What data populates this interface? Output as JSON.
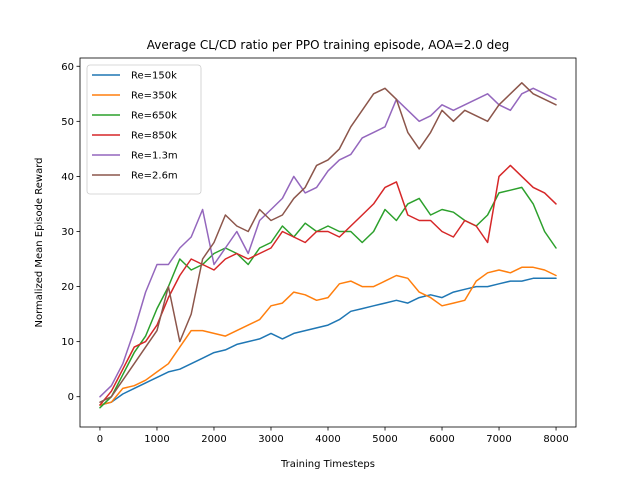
{
  "chart_data": {
    "type": "line",
    "title": "Average CL/CD ratio per PPO training episode, AOA=2.0 deg",
    "xlabel": "Training Timesteps",
    "ylabel": "Normalized Mean Episode Reward",
    "xlim": [
      -350,
      8350
    ],
    "ylim": [
      -5.5,
      61.5
    ],
    "xticks": [
      0,
      1000,
      2000,
      3000,
      4000,
      5000,
      6000,
      7000,
      8000
    ],
    "yticks": [
      0,
      10,
      20,
      30,
      40,
      50,
      60
    ],
    "legend_position": "upper-left",
    "grid": false,
    "series": [
      {
        "name": "Re=150k",
        "color": "#1f77b4",
        "x": [
          0,
          200,
          400,
          600,
          800,
          1000,
          1200,
          1400,
          1600,
          1800,
          2000,
          2200,
          2400,
          2600,
          2800,
          3000,
          3200,
          3400,
          3600,
          3800,
          4000,
          4200,
          4400,
          4600,
          4800,
          5000,
          5200,
          5400,
          5600,
          5800,
          6000,
          6200,
          6400,
          6600,
          6800,
          7000,
          7200,
          7400,
          7600,
          7800,
          8000
        ],
        "y": [
          -1.5,
          -1,
          0.5,
          1.5,
          2.5,
          3.5,
          4.5,
          5,
          6,
          7,
          8,
          8.5,
          9.5,
          10,
          10.5,
          11.5,
          10.5,
          11.5,
          12,
          12.5,
          13,
          14,
          15.5,
          16,
          16.5,
          17,
          17.5,
          17,
          18,
          18.5,
          18,
          19,
          19.5,
          20,
          20,
          20.5,
          21,
          21,
          21.5,
          21.5,
          21.5
        ]
      },
      {
        "name": "Re=350k",
        "color": "#ff7f0e",
        "x": [
          0,
          200,
          400,
          600,
          800,
          1000,
          1200,
          1400,
          1600,
          1800,
          2000,
          2200,
          2400,
          2600,
          2800,
          3000,
          3200,
          3400,
          3600,
          3800,
          4000,
          4200,
          4400,
          4600,
          4800,
          5000,
          5200,
          5400,
          5600,
          5800,
          6000,
          6200,
          6400,
          6600,
          6800,
          7000,
          7200,
          7400,
          7600,
          7800,
          8000
        ],
        "y": [
          -1.5,
          -1,
          1.5,
          2,
          3,
          4.5,
          6,
          9,
          12,
          12,
          11.5,
          11,
          12,
          13,
          14,
          16.5,
          17,
          19,
          18.5,
          17.5,
          18,
          20.5,
          21,
          20,
          20,
          21,
          22,
          21.5,
          19,
          18,
          16.5,
          17,
          17.5,
          21,
          22.5,
          23,
          22.5,
          23.5,
          23.5,
          23,
          22
        ]
      },
      {
        "name": "Re=650k",
        "color": "#2ca02c",
        "x": [
          0,
          200,
          400,
          600,
          800,
          1000,
          1200,
          1400,
          1600,
          1800,
          2000,
          2200,
          2400,
          2600,
          2800,
          3000,
          3200,
          3400,
          3600,
          3800,
          4000,
          4200,
          4400,
          4600,
          4800,
          5000,
          5200,
          5400,
          5600,
          5800,
          6000,
          6200,
          6400,
          6600,
          6800,
          7000,
          7200,
          7400,
          7600,
          7800,
          8000
        ],
        "y": [
          -2,
          0,
          4,
          8,
          11,
          16,
          20,
          25,
          23,
          24,
          26,
          27,
          26,
          24,
          27,
          28,
          31,
          29,
          31.5,
          30,
          31,
          30,
          30,
          28,
          30,
          34,
          32,
          35,
          36,
          33,
          34,
          33.5,
          32,
          31,
          33,
          37,
          37.5,
          38,
          35,
          30,
          27
        ]
      },
      {
        "name": "Re=850k",
        "color": "#d62728",
        "x": [
          0,
          200,
          400,
          600,
          800,
          1000,
          1200,
          1400,
          1600,
          1800,
          2000,
          2200,
          2400,
          2600,
          2800,
          3000,
          3200,
          3400,
          3600,
          3800,
          4000,
          4200,
          4400,
          4600,
          4800,
          5000,
          5200,
          5400,
          5600,
          5800,
          6000,
          6200,
          6400,
          6600,
          6800,
          7000,
          7200,
          7400,
          7600,
          7800,
          8000
        ],
        "y": [
          -1.5,
          1,
          5,
          9,
          10,
          13,
          18,
          22,
          25,
          24,
          23,
          25,
          26,
          25,
          26,
          27,
          30,
          29,
          28,
          30,
          30,
          29,
          31,
          33,
          35,
          38,
          39,
          33,
          32,
          32,
          30,
          29,
          32,
          31,
          28,
          40,
          42,
          40,
          38,
          37,
          35
        ]
      },
      {
        "name": "Re=1.3m",
        "color": "#9467bd",
        "x": [
          0,
          200,
          400,
          600,
          800,
          1000,
          1200,
          1400,
          1600,
          1800,
          2000,
          2200,
          2400,
          2600,
          2800,
          3000,
          3200,
          3400,
          3600,
          3800,
          4000,
          4200,
          4400,
          4600,
          4800,
          5000,
          5200,
          5400,
          5600,
          5800,
          6000,
          6200,
          6400,
          6600,
          6800,
          7000,
          7200,
          7400,
          7600,
          7800,
          8000
        ],
        "y": [
          0,
          2,
          6,
          12,
          19,
          24,
          24,
          27,
          29,
          34,
          24,
          27,
          30,
          26,
          32,
          34,
          36,
          40,
          37,
          38,
          41,
          43,
          44,
          47,
          48,
          49,
          54,
          52,
          50,
          51,
          53,
          52,
          53,
          54,
          55,
          53,
          52,
          55,
          56,
          55,
          54
        ]
      },
      {
        "name": "Re=2.6m",
        "color": "#8c564b",
        "x": [
          0,
          200,
          400,
          600,
          800,
          1000,
          1200,
          1400,
          1600,
          1800,
          2000,
          2200,
          2400,
          2600,
          2800,
          3000,
          3200,
          3400,
          3600,
          3800,
          4000,
          4200,
          4400,
          4600,
          4800,
          5000,
          5200,
          5400,
          5600,
          5800,
          6000,
          6200,
          6400,
          6600,
          6800,
          7000,
          7200,
          7400,
          7600,
          7800,
          8000
        ],
        "y": [
          -1,
          0,
          3,
          6,
          9,
          12,
          20,
          10,
          15,
          25,
          28,
          33,
          31,
          30,
          34,
          32,
          33,
          36,
          38,
          42,
          43,
          45,
          49,
          52,
          55,
          56,
          54,
          48,
          45,
          48,
          52,
          50,
          52,
          51,
          50,
          53,
          55,
          57,
          55,
          54,
          53
        ]
      }
    ]
  }
}
